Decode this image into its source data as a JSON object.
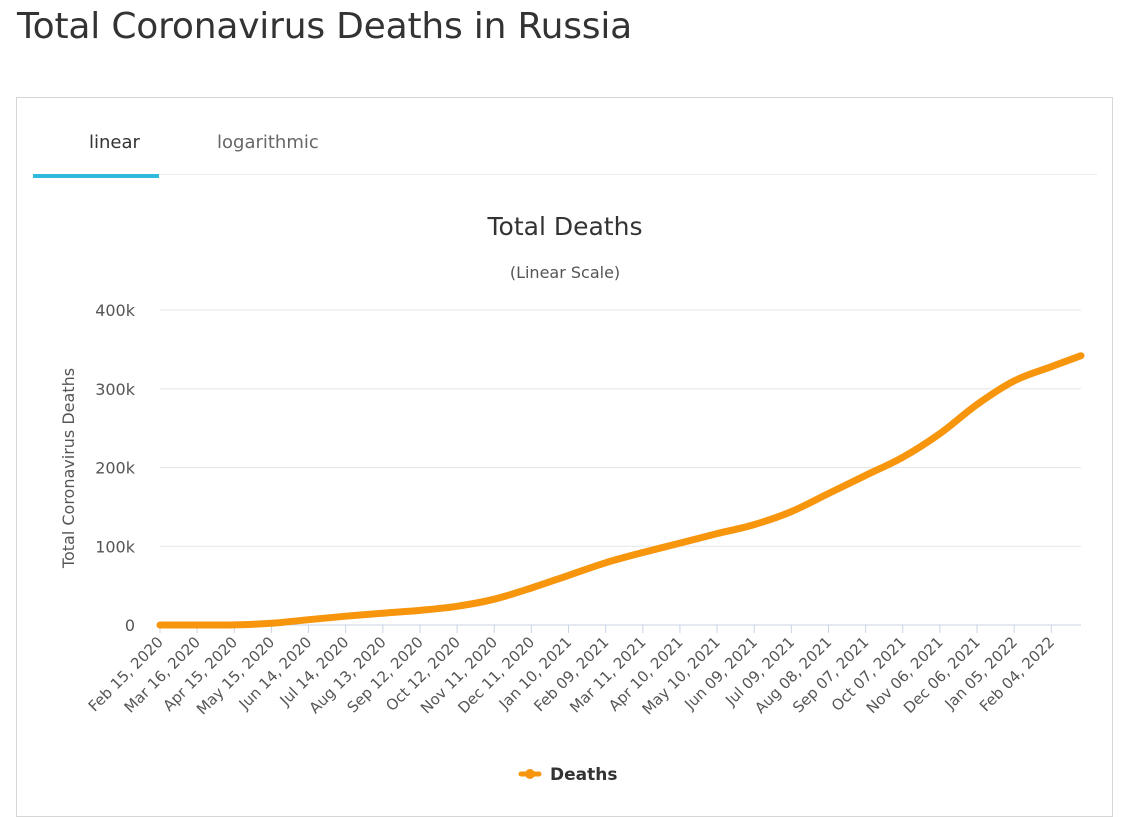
{
  "page": {
    "title": "Total Coronavirus Deaths in Russia"
  },
  "tabs": [
    {
      "label": "linear",
      "active": true
    },
    {
      "label": "logarithmic",
      "active": false
    }
  ],
  "colors": {
    "series": "#f7960d",
    "tab_active": "#30b9dc",
    "grid": "#e6e6e6"
  },
  "chart_data": {
    "type": "line",
    "title": "Total Deaths",
    "subtitle": "(Linear Scale)",
    "ylabel": "Total Coronavirus Deaths",
    "xlabel": "",
    "ylim": [
      0,
      400000
    ],
    "y_ticks": [
      0,
      100000,
      200000,
      300000,
      400000
    ],
    "y_tick_labels": [
      "0",
      "100k",
      "200k",
      "300k",
      "400k"
    ],
    "x_tick_labels": [
      "Feb 15, 2020",
      "Mar 16, 2020",
      "Apr 15, 2020",
      "May 15, 2020",
      "Jun 14, 2020",
      "Jul 14, 2020",
      "Aug 13, 2020",
      "Sep 12, 2020",
      "Oct 12, 2020",
      "Nov 11, 2020",
      "Dec 11, 2020",
      "Jan 10, 2021",
      "Feb 09, 2021",
      "Mar 11, 2021",
      "Apr 10, 2021",
      "May 10, 2021",
      "Jun 09, 2021",
      "Jul 09, 2021",
      "Aug 08, 2021",
      "Sep 07, 2021",
      "Oct 07, 2021",
      "Nov 06, 2021",
      "Dec 06, 2021",
      "Jan 05, 2022",
      "Feb 04, 2022"
    ],
    "x_range": [
      "2020-02-15",
      "2022-02-28"
    ],
    "grid": true,
    "legend_position": "bottom-center",
    "series": [
      {
        "name": "Deaths",
        "color": "#f7960d",
        "points": [
          {
            "x": "2020-02-15",
            "y": 0
          },
          {
            "x": "2020-03-16",
            "y": 0
          },
          {
            "x": "2020-04-15",
            "y": 150
          },
          {
            "x": "2020-05-15",
            "y": 2200
          },
          {
            "x": "2020-06-14",
            "y": 6700
          },
          {
            "x": "2020-07-14",
            "y": 11200
          },
          {
            "x": "2020-08-13",
            "y": 15000
          },
          {
            "x": "2020-09-12",
            "y": 18600
          },
          {
            "x": "2020-10-12",
            "y": 23800
          },
          {
            "x": "2020-11-11",
            "y": 32700
          },
          {
            "x": "2020-12-11",
            "y": 47000
          },
          {
            "x": "2021-01-10",
            "y": 63000
          },
          {
            "x": "2021-02-09",
            "y": 79000
          },
          {
            "x": "2021-03-11",
            "y": 92000
          },
          {
            "x": "2021-04-10",
            "y": 104000
          },
          {
            "x": "2021-05-10",
            "y": 116000
          },
          {
            "x": "2021-06-09",
            "y": 127500
          },
          {
            "x": "2021-07-09",
            "y": 144000
          },
          {
            "x": "2021-08-08",
            "y": 167000
          },
          {
            "x": "2021-09-07",
            "y": 190000
          },
          {
            "x": "2021-10-07",
            "y": 213000
          },
          {
            "x": "2021-11-06",
            "y": 243000
          },
          {
            "x": "2021-12-06",
            "y": 280000
          },
          {
            "x": "2022-01-05",
            "y": 310000
          },
          {
            "x": "2022-02-04",
            "y": 328000
          },
          {
            "x": "2022-02-28",
            "y": 342000
          }
        ]
      }
    ]
  }
}
